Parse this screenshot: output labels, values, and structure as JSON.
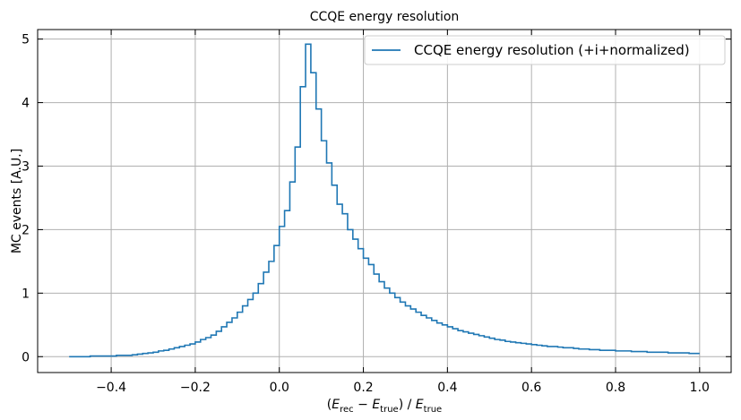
{
  "chart_data": {
    "type": "line",
    "drawstyle": "steps",
    "title": "CCQE energy resolution",
    "xlabel": {
      "base": "(E_rec − E_true) / E_true",
      "parts": [
        "(",
        "E",
        "rec",
        " − ",
        "E",
        "true",
        ") / ",
        "E",
        "true"
      ]
    },
    "ylabel": "MC events [A.U.]",
    "xlim": [
      -0.575,
      1.075
    ],
    "ylim": [
      -0.25,
      5.15
    ],
    "xticks": [
      -0.4,
      -0.2,
      0.0,
      0.2,
      0.4,
      0.6,
      0.8,
      1.0
    ],
    "xtick_labels": [
      "−0.4",
      "−0.2",
      "0.0",
      "0.2",
      "0.4",
      "0.6",
      "0.8",
      "1.0"
    ],
    "yticks": [
      0,
      1,
      2,
      3,
      4,
      5
    ],
    "ytick_labels": [
      "0",
      "1",
      "2",
      "3",
      "4",
      "5"
    ],
    "grid": true,
    "legend_position": "top-right",
    "series": [
      {
        "name": "CCQE energy resolution (+i+normalized)",
        "color": "#1f77b4",
        "bin_start": -0.5,
        "bin_width": 0.0125,
        "values": [
          0.0,
          0.0,
          0.0,
          0.0,
          0.01,
          0.01,
          0.01,
          0.01,
          0.01,
          0.02,
          0.02,
          0.02,
          0.03,
          0.04,
          0.05,
          0.06,
          0.07,
          0.09,
          0.1,
          0.12,
          0.14,
          0.16,
          0.18,
          0.2,
          0.23,
          0.27,
          0.3,
          0.34,
          0.4,
          0.47,
          0.54,
          0.61,
          0.7,
          0.8,
          0.9,
          1.0,
          1.15,
          1.33,
          1.5,
          1.75,
          2.05,
          2.3,
          2.75,
          3.3,
          4.25,
          4.92,
          4.47,
          3.9,
          3.4,
          3.05,
          2.7,
          2.4,
          2.25,
          2.0,
          1.85,
          1.7,
          1.55,
          1.45,
          1.3,
          1.18,
          1.08,
          1.0,
          0.93,
          0.86,
          0.8,
          0.75,
          0.7,
          0.65,
          0.61,
          0.57,
          0.53,
          0.5,
          0.47,
          0.44,
          0.41,
          0.39,
          0.37,
          0.35,
          0.33,
          0.31,
          0.29,
          0.27,
          0.26,
          0.24,
          0.23,
          0.22,
          0.21,
          0.2,
          0.19,
          0.18,
          0.17,
          0.16,
          0.16,
          0.15,
          0.14,
          0.14,
          0.13,
          0.12,
          0.12,
          0.11,
          0.11,
          0.1,
          0.1,
          0.1,
          0.09,
          0.09,
          0.09,
          0.08,
          0.08,
          0.08,
          0.07,
          0.07,
          0.07,
          0.07,
          0.06,
          0.06,
          0.06,
          0.06,
          0.05,
          0.05
        ]
      }
    ]
  }
}
